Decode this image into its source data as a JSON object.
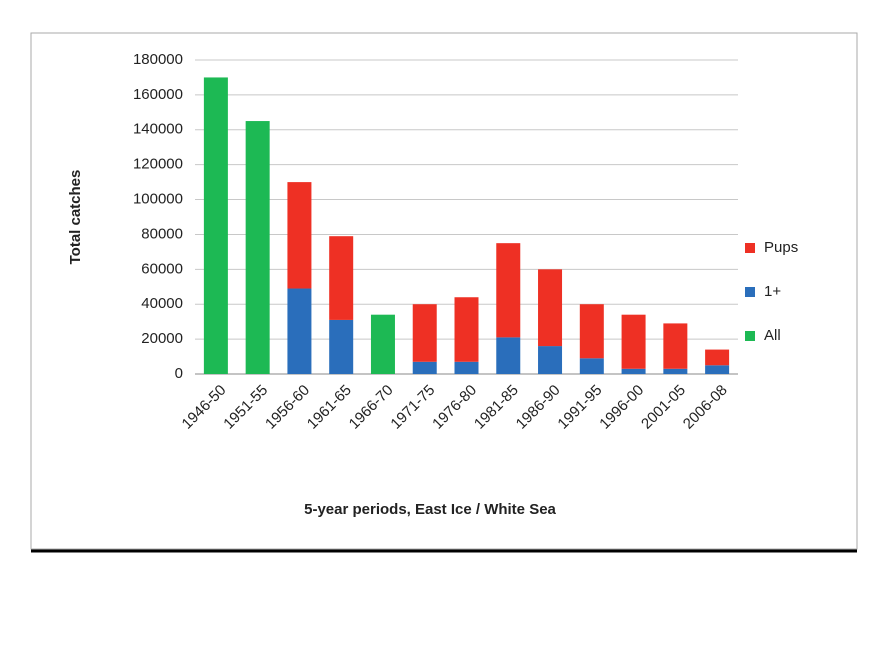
{
  "chart_data": {
    "type": "stacked-bar",
    "y_label": "Total catches",
    "x_label": "5-year periods, East Ice / White Sea",
    "categories": [
      "1946-50",
      "1951-55",
      "1956-60",
      "1961-65",
      "1966-70",
      "1971-75",
      "1976-80",
      "1981-85",
      "1986-90",
      "1991-95",
      "1996-00",
      "2001-05",
      "2006-08"
    ],
    "series": [
      {
        "name": "Pups",
        "color": "#ee3024",
        "values": [
          null,
          null,
          61000,
          48000,
          null,
          33000,
          37000,
          54000,
          44000,
          31000,
          31000,
          26000,
          9000
        ]
      },
      {
        "name": "1+",
        "color": "#2a6ebb",
        "values": [
          null,
          null,
          49000,
          31000,
          null,
          7000,
          7000,
          21000,
          16000,
          9000,
          3000,
          3000,
          5000
        ]
      },
      {
        "name": "All",
        "color": "#1db954",
        "values": [
          170000,
          145000,
          null,
          null,
          34000,
          null,
          null,
          null,
          null,
          null,
          null,
          null,
          null
        ]
      }
    ],
    "ylim": [
      0,
      180000
    ],
    "yticks": [
      0,
      20000,
      40000,
      60000,
      80000,
      100000,
      120000,
      140000,
      160000,
      180000
    ],
    "grid": true,
    "legend": "right"
  }
}
